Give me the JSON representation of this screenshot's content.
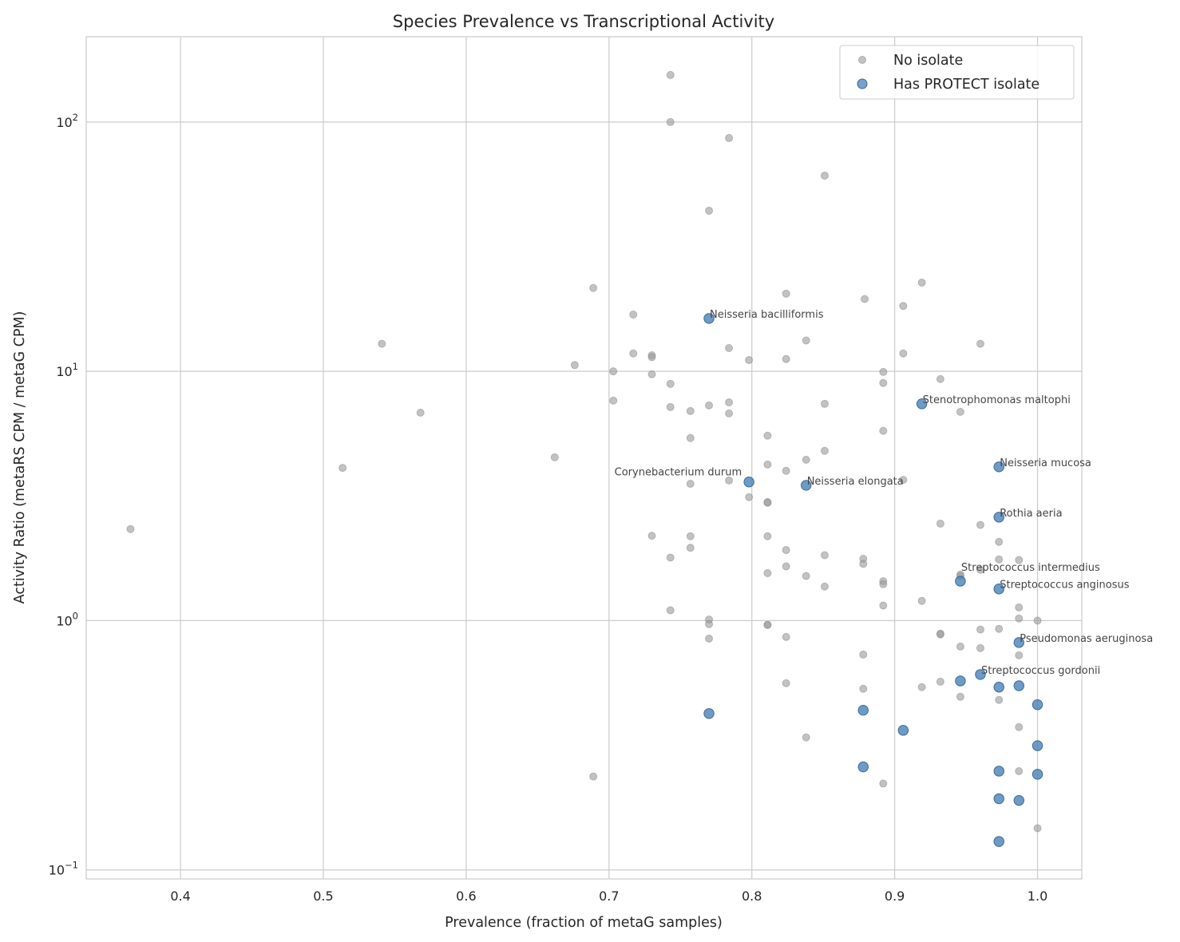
{
  "chart_data": {
    "type": "scatter",
    "title": "Species Prevalence vs Transcriptional Activity",
    "xlabel": "Prevalence (fraction of metaG samples)",
    "ylabel": "Activity Ratio (metaRS CPM / metaG CPM)",
    "xlim": [
      0.334,
      1.031
    ],
    "ylim": [
      0.092,
      220
    ],
    "yscale": "log",
    "grid": true,
    "legend_position": "top-right",
    "x_ticks": [
      0.4,
      0.5,
      0.6,
      0.7,
      0.8,
      0.9,
      1.0
    ],
    "x_tick_labels": [
      "0.4",
      "0.5",
      "0.6",
      "0.7",
      "0.8",
      "0.9",
      "1.0"
    ],
    "y_ticks": [
      0.1,
      1,
      10,
      100
    ],
    "y_tick_labels": [
      {
        "base": "10",
        "exp": "−1"
      },
      {
        "base": "10",
        "exp": "0"
      },
      {
        "base": "10",
        "exp": "1"
      },
      {
        "base": "10",
        "exp": "2"
      }
    ],
    "series": [
      {
        "name": "No isolate",
        "color": "#999999",
        "points": [
          [
            0.743,
            154.5
          ],
          [
            0.743,
            100
          ],
          [
            0.784,
            86.3
          ],
          [
            0.851,
            61.0
          ],
          [
            0.77,
            44.1
          ],
          [
            0.689,
            21.6
          ],
          [
            0.919,
            22.7
          ],
          [
            0.824,
            20.5
          ],
          [
            0.879,
            19.5
          ],
          [
            0.906,
            18.3
          ],
          [
            0.717,
            16.9
          ],
          [
            0.541,
            12.9
          ],
          [
            0.96,
            12.9
          ],
          [
            0.838,
            13.3
          ],
          [
            0.784,
            12.4
          ],
          [
            0.717,
            11.8
          ],
          [
            0.73,
            11.6
          ],
          [
            0.73,
            11.4
          ],
          [
            0.798,
            11.1
          ],
          [
            0.824,
            11.2
          ],
          [
            0.906,
            11.8
          ],
          [
            0.676,
            10.6
          ],
          [
            0.703,
            10.0
          ],
          [
            0.892,
            9.95
          ],
          [
            0.73,
            9.73
          ],
          [
            0.743,
            8.91
          ],
          [
            0.892,
            8.98
          ],
          [
            0.932,
            9.31
          ],
          [
            0.703,
            7.63
          ],
          [
            0.784,
            7.51
          ],
          [
            0.77,
            7.3
          ],
          [
            0.743,
            7.19
          ],
          [
            0.757,
            6.93
          ],
          [
            0.851,
            7.41
          ],
          [
            0.784,
            6.78
          ],
          [
            0.568,
            6.83
          ],
          [
            0.946,
            6.88
          ],
          [
            0.892,
            5.77
          ],
          [
            0.811,
            5.52
          ],
          [
            0.757,
            5.4
          ],
          [
            0.851,
            4.8
          ],
          [
            0.662,
            4.52
          ],
          [
            0.838,
            4.42
          ],
          [
            0.811,
            4.23
          ],
          [
            0.824,
            3.99
          ],
          [
            0.5135,
            4.1
          ],
          [
            0.784,
            3.65
          ],
          [
            0.757,
            3.54
          ],
          [
            0.906,
            3.67
          ],
          [
            0.798,
            3.13
          ],
          [
            0.811,
            2.99
          ],
          [
            0.811,
            2.97
          ],
          [
            0.365,
            2.33
          ],
          [
            0.932,
            2.45
          ],
          [
            0.96,
            2.42
          ],
          [
            0.973,
            2.07
          ],
          [
            0.73,
            2.19
          ],
          [
            0.757,
            2.18
          ],
          [
            0.811,
            2.18
          ],
          [
            0.757,
            1.96
          ],
          [
            0.824,
            1.92
          ],
          [
            0.851,
            1.83
          ],
          [
            0.743,
            1.79
          ],
          [
            0.878,
            1.77
          ],
          [
            0.878,
            1.69
          ],
          [
            0.973,
            1.76
          ],
          [
            0.987,
            1.75
          ],
          [
            0.824,
            1.65
          ],
          [
            0.96,
            1.6
          ],
          [
            0.946,
            1.53
          ],
          [
            0.946,
            1.51
          ],
          [
            0.811,
            1.55
          ],
          [
            0.838,
            1.51
          ],
          [
            0.892,
            1.44
          ],
          [
            0.892,
            1.4
          ],
          [
            0.851,
            1.37
          ],
          [
            0.919,
            1.2
          ],
          [
            0.892,
            1.15
          ],
          [
            0.987,
            1.13
          ],
          [
            0.743,
            1.1
          ],
          [
            0.77,
            1.01
          ],
          [
            0.77,
            0.968
          ],
          [
            0.987,
            1.02
          ],
          [
            1.0,
            1.0
          ],
          [
            0.811,
            0.962
          ],
          [
            0.811,
            0.962
          ],
          [
            0.96,
            0.921
          ],
          [
            0.973,
            0.927
          ],
          [
            0.932,
            0.887
          ],
          [
            0.932,
            0.88
          ],
          [
            0.77,
            0.847
          ],
          [
            0.824,
            0.86
          ],
          [
            0.946,
            0.787
          ],
          [
            0.96,
            0.776
          ],
          [
            0.987,
            0.726
          ],
          [
            0.878,
            0.731
          ],
          [
            0.824,
            0.561
          ],
          [
            0.932,
            0.569
          ],
          [
            0.919,
            0.541
          ],
          [
            0.878,
            0.533
          ],
          [
            0.946,
            0.495
          ],
          [
            0.973,
            0.481
          ],
          [
            0.987,
            0.374
          ],
          [
            0.838,
            0.34
          ],
          [
            0.689,
            0.237
          ],
          [
            0.987,
            0.249
          ],
          [
            0.892,
            0.222
          ],
          [
            1.0,
            0.147
          ]
        ]
      },
      {
        "name": "Has PROTECT isolate",
        "color": "#4a82b8",
        "points": [
          [
            0.77,
            16.3,
            "Neisseria bacilliformis"
          ],
          [
            0.919,
            7.41,
            "Stenotrophomonas maltophi"
          ],
          [
            0.973,
            4.14,
            "Neisseria mucosa"
          ],
          [
            0.798,
            3.6,
            "Corynebacterium durum"
          ],
          [
            0.838,
            3.49,
            "Neisseria elongata"
          ],
          [
            0.973,
            2.6,
            "Rothia aeria"
          ],
          [
            0.946,
            1.44,
            "Streptococcus intermedius"
          ],
          [
            0.973,
            1.34,
            "Streptococcus anginosus"
          ],
          [
            0.987,
            0.817,
            "Pseudomonas aeruginosa"
          ],
          [
            0.96,
            0.608,
            "Streptococcus gordonii"
          ],
          [
            0.946,
            0.573
          ],
          [
            0.973,
            0.541
          ],
          [
            0.987,
            0.548
          ],
          [
            1.0,
            0.46
          ],
          [
            0.77,
            0.424
          ],
          [
            0.878,
            0.437
          ],
          [
            0.906,
            0.363
          ],
          [
            1.0,
            0.315
          ],
          [
            0.878,
            0.259
          ],
          [
            0.973,
            0.249
          ],
          [
            1.0,
            0.242
          ],
          [
            0.973,
            0.193
          ],
          [
            0.987,
            0.19
          ],
          [
            0.973,
            0.13
          ]
        ]
      }
    ]
  }
}
